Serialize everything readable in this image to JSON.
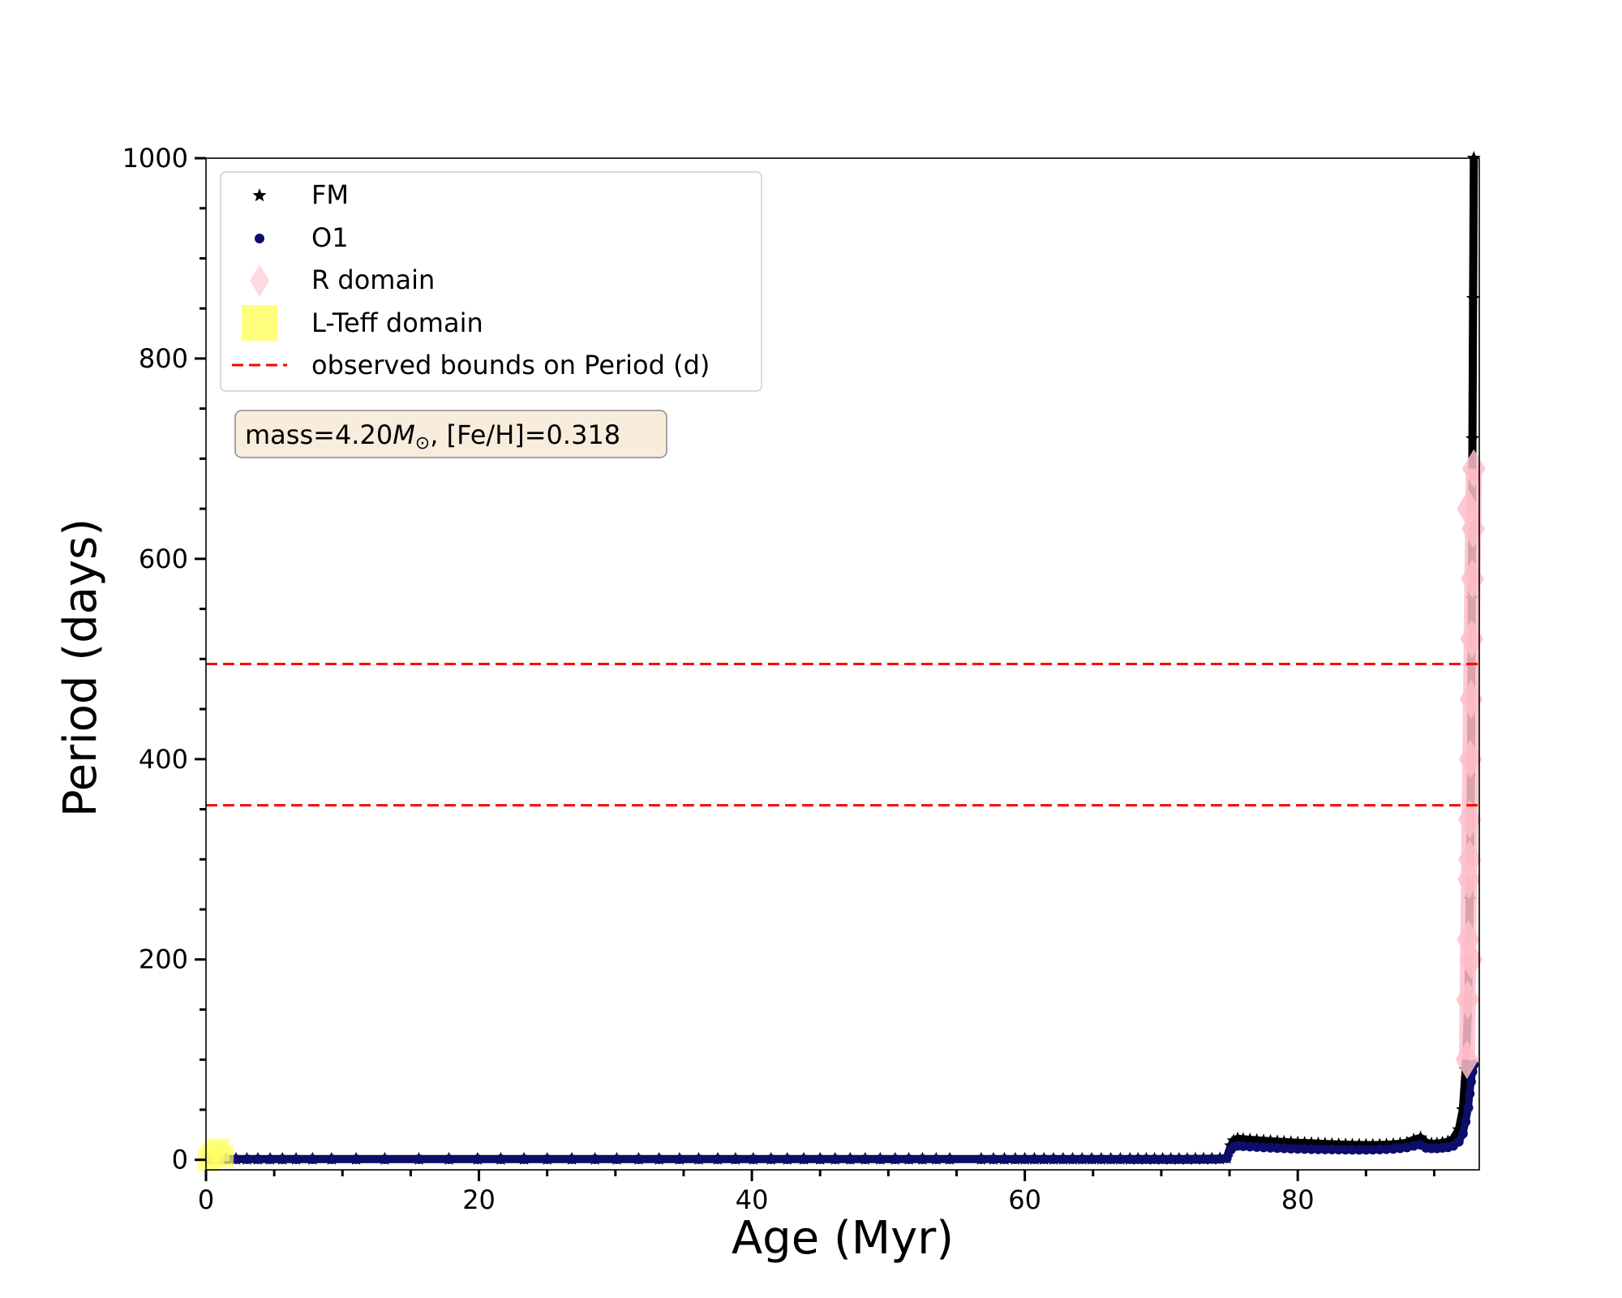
{
  "chart_data": {
    "type": "scatter",
    "xlabel": "Age (Myr)",
    "ylabel": "Period (days)",
    "xlim": [
      0,
      93.3
    ],
    "ylim": [
      -10,
      1000
    ],
    "x_ticks": [
      0,
      20,
      40,
      60,
      80
    ],
    "x_tick_labels": [
      "0",
      "20",
      "40",
      "60",
      "80"
    ],
    "x_minor_ticks": [
      5,
      10,
      15,
      25,
      30,
      35,
      45,
      50,
      55,
      65,
      70,
      75,
      85,
      90
    ],
    "y_ticks": [
      0,
      200,
      400,
      600,
      800,
      1000
    ],
    "y_tick_labels": [
      "0",
      "200",
      "400",
      "600",
      "800",
      "1000"
    ],
    "y_minor_ticks": [
      50,
      100,
      150,
      250,
      300,
      350,
      450,
      500,
      550,
      650,
      700,
      750,
      850,
      900,
      950
    ],
    "grid": false,
    "legend_placement": "top-left",
    "legend": {
      "entries": [
        {
          "label": "FM",
          "marker": "star",
          "color": "#000000"
        },
        {
          "label": "O1",
          "marker": "circle",
          "color": "#0d0d6b"
        },
        {
          "label": "R domain",
          "marker": "diamond",
          "color": "#ffc0cb"
        },
        {
          "label": "L-Teff domain",
          "marker": "square",
          "color": "#ffff66"
        },
        {
          "label": "observed bounds on Period (d)",
          "marker": "dashed-line",
          "color": "#ff0000"
        }
      ]
    },
    "annotation": {
      "prefix": "mass=4.20",
      "symbol": "M",
      "subscript": "⊙",
      "suffix": ", [Fe/H]=0.318"
    },
    "observed_bounds": [
      495,
      354
    ],
    "series": [
      {
        "name": "FM",
        "marker": "star",
        "color": "#000000",
        "x": [
          0.3,
          0.8,
          1.5,
          2.2,
          3.0,
          3.8,
          4.7,
          5.6,
          6.6,
          7.8,
          9.2,
          11.0,
          13.1,
          15.6,
          17.8,
          19.9,
          21.6,
          23.3,
          25.0,
          26.8,
          28.5,
          30.1,
          31.7,
          33.2,
          34.7,
          36.1,
          37.5,
          38.8,
          40.1,
          41.4,
          42.6,
          43.8,
          45.0,
          46.1,
          47.2,
          48.3,
          49.4,
          50.5,
          51.5,
          52.5,
          53.5,
          54.5,
          56.8,
          57.7,
          58.5,
          59.3,
          60.0,
          60.7,
          61.4,
          62.1,
          62.8,
          63.5,
          64.2,
          64.9,
          65.6,
          66.3,
          67.0,
          67.7,
          68.3,
          68.9,
          69.5,
          70.1,
          70.7,
          71.3,
          71.9,
          72.5,
          73.1,
          73.7,
          74.3,
          74.8,
          75.1,
          75.3,
          75.6,
          76.0,
          76.5,
          77.0,
          77.5,
          78.0,
          78.5,
          79.0,
          79.5,
          80.0,
          80.5,
          81.0,
          81.5,
          82.0,
          82.5,
          83.0,
          83.5,
          84.0,
          84.5,
          85.0,
          85.5,
          86.0,
          86.5,
          87.0,
          87.5,
          88.0,
          88.5,
          89.0,
          89.4,
          89.8,
          90.2,
          90.6,
          91.0,
          91.4,
          91.8,
          92.1,
          92.3,
          92.5,
          92.6,
          92.7,
          92.75,
          92.8,
          92.85,
          92.9
        ],
        "y": [
          0.8,
          0.8,
          0.8,
          0.8,
          0.8,
          0.8,
          0.8,
          0.8,
          0.8,
          0.8,
          0.8,
          0.8,
          0.8,
          0.8,
          0.8,
          0.8,
          0.8,
          0.8,
          0.8,
          0.8,
          0.8,
          0.8,
          0.8,
          0.8,
          0.8,
          0.8,
          0.8,
          0.8,
          0.8,
          0.8,
          0.8,
          0.8,
          0.8,
          0.8,
          0.8,
          0.8,
          0.8,
          0.8,
          0.8,
          0.8,
          0.8,
          0.8,
          0.8,
          0.8,
          0.8,
          0.8,
          0.8,
          0.8,
          0.8,
          0.8,
          0.8,
          0.8,
          0.8,
          0.8,
          0.8,
          0.8,
          0.8,
          0.8,
          0.8,
          0.8,
          0.8,
          0.8,
          0.8,
          0.8,
          0.8,
          0.9,
          0.9,
          1.0,
          1.2,
          2.0,
          14.0,
          19.0,
          21.0,
          20.5,
          20.0,
          19.5,
          19.0,
          18.6,
          18.2,
          17.8,
          17.4,
          17.0,
          16.7,
          16.4,
          16.1,
          15.8,
          15.5,
          15.3,
          15.1,
          14.9,
          14.8,
          14.7,
          14.7,
          14.8,
          15.0,
          15.4,
          16.0,
          17.0,
          20.0,
          22.0,
          17.0,
          16.0,
          16.0,
          17.0,
          18.0,
          21.0,
          30.0,
          50.0,
          90.0,
          160.0,
          260.0,
          400.0,
          560.0,
          720.0,
          860.0,
          1000.0
        ]
      },
      {
        "name": "O1",
        "marker": "circle",
        "color": "#0d0d6b",
        "x": [
          0.3,
          0.8,
          1.5,
          2.2,
          3.0,
          3.8,
          4.7,
          5.6,
          6.6,
          7.8,
          9.2,
          11.0,
          13.1,
          15.6,
          17.8,
          19.9,
          21.6,
          23.3,
          25.0,
          26.8,
          28.5,
          30.1,
          31.7,
          33.2,
          34.7,
          36.1,
          37.5,
          38.8,
          40.1,
          41.4,
          42.6,
          43.8,
          45.0,
          46.1,
          47.2,
          48.3,
          49.4,
          50.5,
          51.5,
          52.5,
          53.5,
          54.5,
          56.8,
          57.7,
          58.5,
          59.3,
          60.0,
          60.7,
          61.4,
          62.1,
          62.8,
          63.5,
          64.2,
          64.9,
          65.6,
          66.3,
          67.0,
          67.7,
          68.3,
          68.9,
          69.5,
          70.1,
          70.7,
          71.3,
          71.9,
          72.5,
          73.1,
          73.7,
          74.3,
          74.8,
          75.1,
          75.3,
          75.6,
          76.0,
          76.5,
          77.0,
          77.5,
          78.0,
          78.5,
          79.0,
          79.5,
          80.0,
          80.5,
          81.0,
          81.5,
          82.0,
          82.5,
          83.0,
          83.5,
          84.0,
          84.5,
          85.0,
          85.5,
          86.0,
          86.5,
          87.0,
          87.5,
          88.0,
          88.5,
          89.0,
          89.4,
          89.8,
          90.2,
          90.6,
          91.0,
          91.4,
          91.8,
          92.1,
          92.3,
          92.5,
          92.6,
          92.7,
          92.8,
          92.9
        ],
        "y": [
          0.6,
          0.6,
          0.6,
          0.6,
          0.6,
          0.6,
          0.6,
          0.6,
          0.6,
          0.6,
          0.6,
          0.6,
          0.6,
          0.6,
          0.6,
          0.6,
          0.6,
          0.6,
          0.6,
          0.6,
          0.6,
          0.6,
          0.6,
          0.6,
          0.6,
          0.6,
          0.6,
          0.6,
          0.6,
          0.6,
          0.6,
          0.6,
          0.6,
          0.6,
          0.6,
          0.6,
          0.6,
          0.6,
          0.6,
          0.6,
          0.6,
          0.6,
          0.6,
          0.6,
          0.6,
          0.6,
          0.6,
          0.6,
          0.6,
          0.6,
          0.6,
          0.6,
          0.6,
          0.6,
          0.6,
          0.6,
          0.6,
          0.6,
          0.6,
          0.6,
          0.6,
          0.6,
          0.6,
          0.6,
          0.6,
          0.7,
          0.7,
          0.8,
          0.9,
          1.5,
          10.0,
          13.0,
          14.0,
          13.6,
          13.2,
          12.8,
          12.4,
          12.1,
          11.8,
          11.5,
          11.2,
          11.0,
          10.8,
          10.6,
          10.5,
          10.4,
          10.3,
          10.2,
          10.1,
          10.0,
          10.0,
          10.0,
          10.1,
          10.3,
          10.6,
          11.0,
          11.6,
          12.4,
          14.0,
          15.0,
          12.0,
          11.5,
          11.5,
          12.0,
          12.5,
          14.0,
          18.0,
          26.0,
          38.0,
          52.0,
          66.0,
          78.0,
          88.0,
          95.0
        ]
      },
      {
        "name": "R domain",
        "marker": "diamond",
        "color": "#ffc0cb",
        "x": [
          92.4,
          92.45,
          92.5,
          92.55,
          92.6,
          92.65,
          92.7,
          92.75,
          92.8,
          92.85,
          92.9,
          92.5,
          92.6,
          92.7
        ],
        "y": [
          100,
          160,
          220,
          280,
          340,
          400,
          460,
          520,
          580,
          630,
          690,
          650,
          300,
          200
        ]
      },
      {
        "name": "L-Teff domain",
        "marker": "square",
        "color": "#ffff66",
        "x": [
          0.2,
          0.5,
          0.9,
          1.2
        ],
        "y": [
          0,
          5,
          10,
          3
        ]
      }
    ]
  }
}
